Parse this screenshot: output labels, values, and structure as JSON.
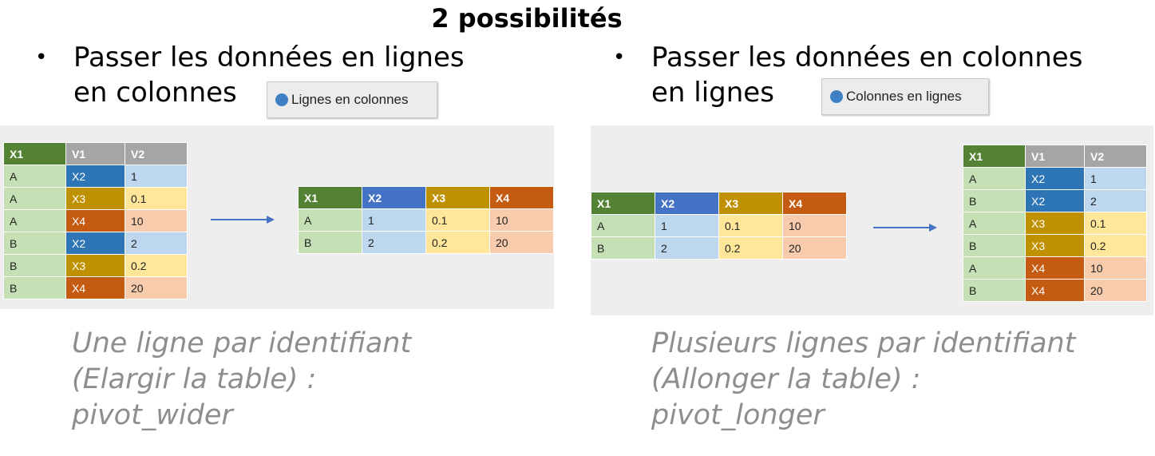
{
  "title": "2 possibilités",
  "left": {
    "bullet_line1": "Passer les données en lignes",
    "bullet_line2": "en colonnes",
    "button_label": "Lignes en colonnes",
    "caption": [
      "Une ligne par identifiant",
      "(Elargir la table) :",
      "pivot_wider"
    ],
    "long_table": {
      "headers": [
        "X1",
        "V1",
        "V2"
      ],
      "rows": [
        [
          "A",
          "X2",
          "1"
        ],
        [
          "A",
          "X3",
          "0.1"
        ],
        [
          "A",
          "X4",
          "10"
        ],
        [
          "B",
          "X2",
          "2"
        ],
        [
          "B",
          "X3",
          "0.2"
        ],
        [
          "B",
          "X4",
          "20"
        ]
      ]
    },
    "wide_table": {
      "headers": [
        "X1",
        "X2",
        "X3",
        "X4"
      ],
      "rows": [
        [
          "A",
          "1",
          "0.1",
          "10"
        ],
        [
          "B",
          "2",
          "0.2",
          "20"
        ]
      ]
    }
  },
  "right": {
    "bullet_line1": "Passer les données en colonnes",
    "bullet_line2": "en lignes",
    "button_label": "Colonnes en lignes",
    "caption": [
      "Plusieurs lignes par identifiant",
      "(Allonger la table) :",
      "pivot_longer"
    ],
    "wide_table": {
      "headers": [
        "X1",
        "X2",
        "X3",
        "X4"
      ],
      "rows": [
        [
          "A",
          "1",
          "0.1",
          "10"
        ],
        [
          "B",
          "2",
          "0.2",
          "20"
        ]
      ]
    },
    "long_table": {
      "headers": [
        "X1",
        "V1",
        "V2"
      ],
      "rows": [
        [
          "A",
          "X2",
          "1"
        ],
        [
          "B",
          "X2",
          "2"
        ],
        [
          "A",
          "X3",
          "0.1"
        ],
        [
          "B",
          "X3",
          "0.2"
        ],
        [
          "A",
          "X4",
          "10"
        ],
        [
          "B",
          "X4",
          "20"
        ]
      ]
    }
  },
  "colors": {
    "x1_header": "#548235",
    "x1_cell": "#c5e0b4",
    "x2_header": "#4472c4",
    "x2_dark": "#2e75b6",
    "x2_cell": "#bdd7ee",
    "x3_header": "#bf9000",
    "x3_cell": "#ffe699",
    "x4_header": "#c55a11",
    "x4_cell": "#f8cbad",
    "v_header": "#a5a5a5",
    "arrow": "#4472c4"
  }
}
